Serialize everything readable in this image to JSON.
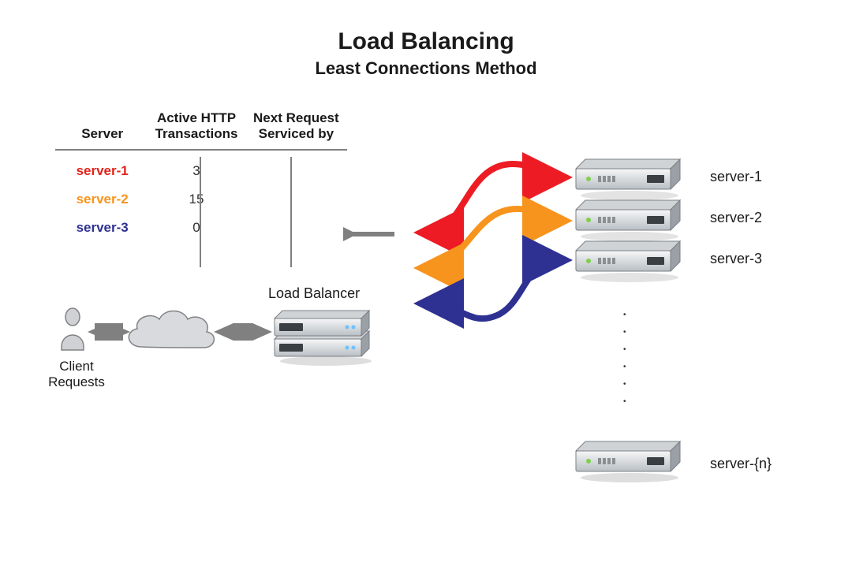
{
  "title": {
    "main": "Load Balancing",
    "sub": "Least Connections Method",
    "main_fontsize": 30,
    "sub_fontsize": 22,
    "color": "#1a1a1a"
  },
  "table": {
    "headers": {
      "server": "Server",
      "active": "Active HTTP\nTransactions",
      "next": "Next Request\nServiced by"
    },
    "rows": [
      {
        "name": "server-1",
        "color": "#e2231a",
        "transactions": "3"
      },
      {
        "name": "server-2",
        "color": "#f7941d",
        "transactions": "15"
      },
      {
        "name": "server-3",
        "color": "#2e3192",
        "transactions": "0"
      }
    ],
    "selected_row_index": 2,
    "border_color": "#808080",
    "arrow_color": "#808080"
  },
  "labels": {
    "load_balancer": "Load Balancer",
    "client_requests": "Client\nRequests"
  },
  "flows": [
    {
      "color": "#ed1c24",
      "target": "server-1"
    },
    {
      "color": "#f7941d",
      "target": "server-2"
    },
    {
      "color": "#2e3192",
      "target": "server-3"
    }
  ],
  "servers_right": [
    {
      "label": "server-1"
    },
    {
      "label": "server-2"
    },
    {
      "label": "server-3"
    }
  ],
  "server_n_label": "server-{n}",
  "style": {
    "background": "#ffffff",
    "server_fill_top": "#f6f7f8",
    "server_fill_bot": "#b9bfc4",
    "server_stroke": "#7a8085",
    "server_shadow": "#c8c8c8",
    "cloud_fill": "#d9dadd",
    "cloud_stroke": "#808285",
    "user_fill": "#cfd1d4",
    "user_stroke": "#808285",
    "arrow_gray": "#808080"
  }
}
